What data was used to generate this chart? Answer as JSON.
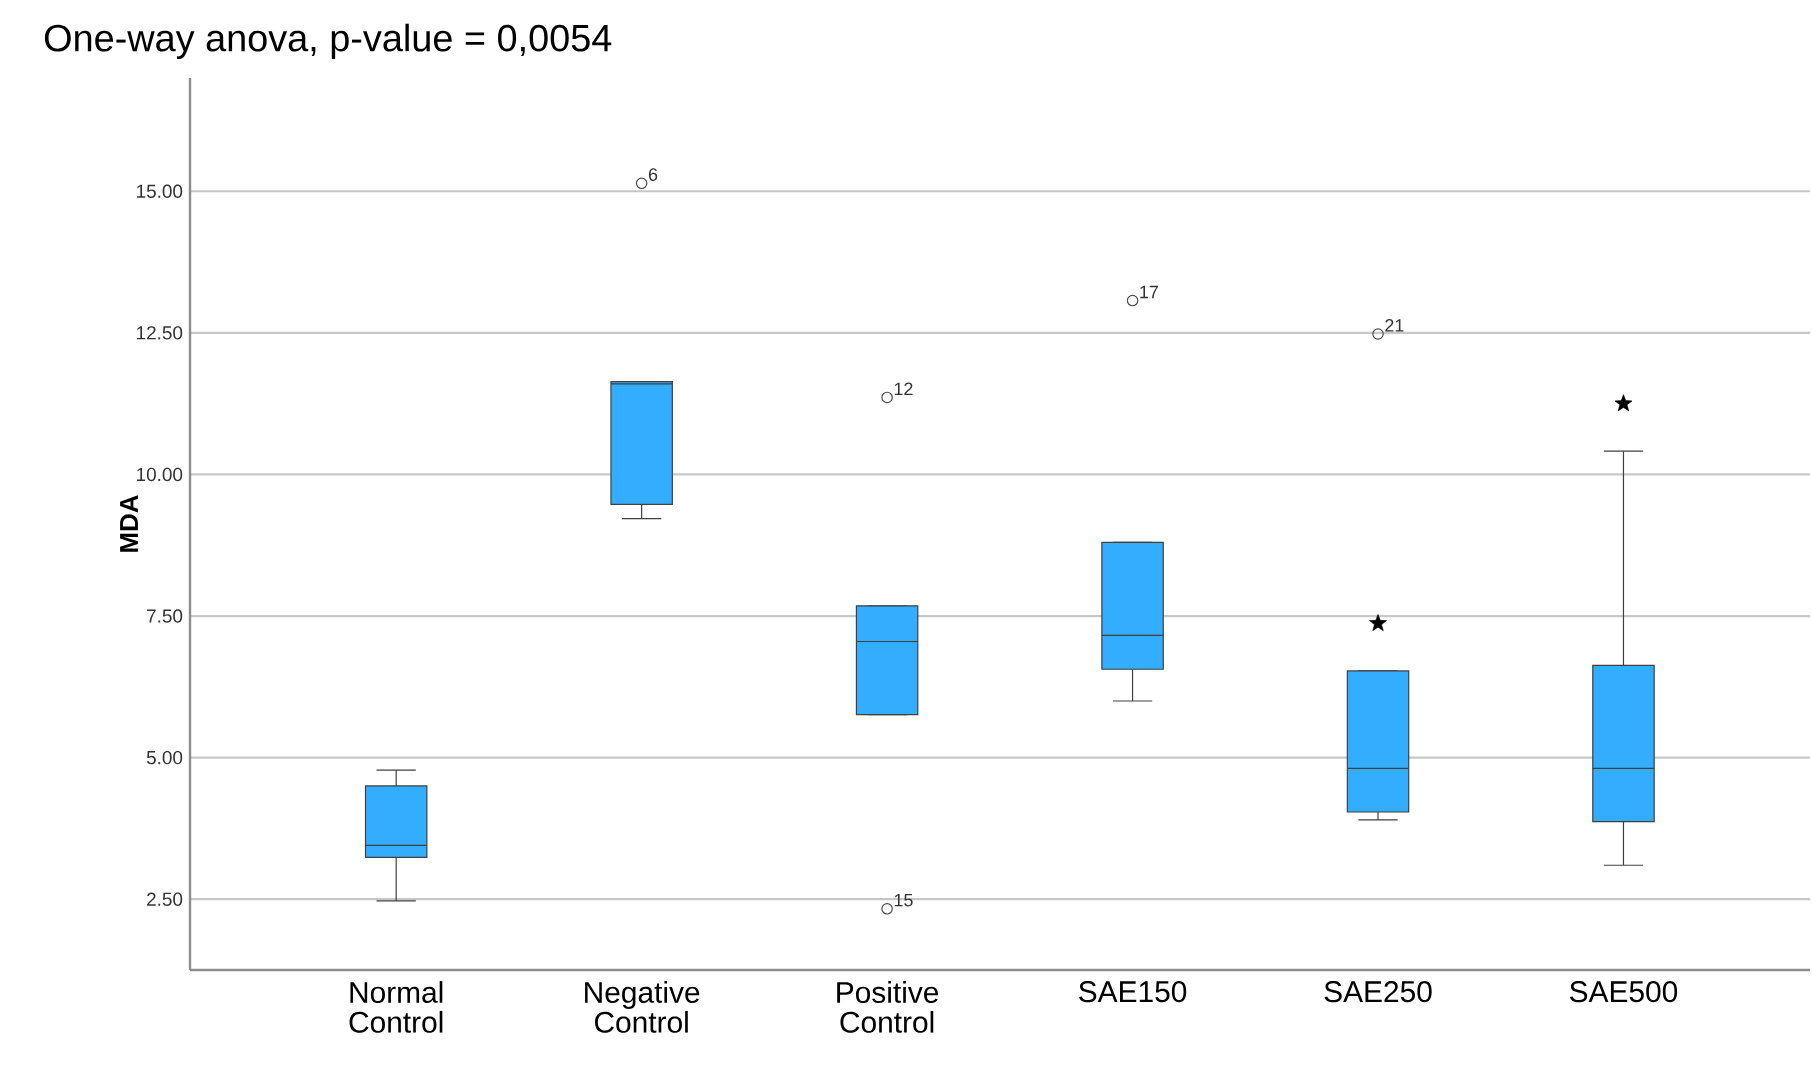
{
  "chart_data": {
    "type": "box",
    "title": "One-way anova, p-value = 0,0054",
    "ylabel": "MDA",
    "categories": [
      "Normal Control",
      "Negative Control",
      "Positive Control",
      "SAE150",
      "SAE250",
      "SAE500"
    ],
    "series": [
      {
        "color": "#33adff",
        "boxes": [
          {
            "low": 2.47,
            "q1": 3.24,
            "median": 3.45,
            "q3": 4.5,
            "high": 4.78
          },
          {
            "low": 9.22,
            "q1": 9.47,
            "median": 11.6,
            "q3": 11.64,
            "high": 11.64,
            "outliers": [
              15.14
            ]
          },
          {
            "low": 5.76,
            "q1": 5.76,
            "median": 7.05,
            "q3": 7.68,
            "high": 7.68,
            "outliers": [
              11.36,
              2.33
            ]
          },
          {
            "low": 6.0,
            "q1": 6.56,
            "median": 7.16,
            "q3": 8.8,
            "high": 8.8,
            "outliers": [
              13.07
            ]
          },
          {
            "low": 3.9,
            "q1": 4.04,
            "median": 4.81,
            "q3": 6.53,
            "high": 6.53,
            "outliers": [
              12.48
            ]
          },
          {
            "low": 3.1,
            "q1": 3.87,
            "median": 4.81,
            "q3": 6.63,
            "high": 10.41
          }
        ]
      },
      {
        "type": "scatter",
        "color": "#000000",
        "marker": "star",
        "x": [
          "SAE250",
          "SAE500"
        ],
        "values": [
          7.37,
          11.25
        ]
      }
    ],
    "annotations": [
      "6",
      "12",
      "15",
      "17",
      "21"
    ],
    "ylim": [
      1.25,
      17
    ],
    "yticks": [
      {
        "value": 2.5,
        "label": "2.50"
      },
      {
        "value": 5,
        "label": "5.00"
      },
      {
        "value": 7.5,
        "label": "7.50"
      },
      {
        "value": 10,
        "label": "10.00"
      },
      {
        "value": 12.5,
        "label": "12.50"
      },
      {
        "value": 15,
        "label": "15.00"
      }
    ],
    "grid": "y"
  }
}
